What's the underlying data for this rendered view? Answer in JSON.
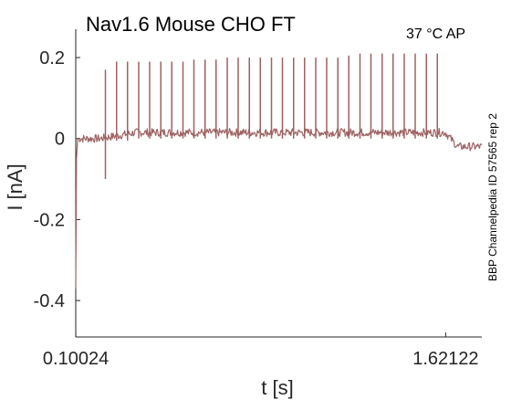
{
  "chart_data": {
    "type": "line",
    "title": "Nav1.6  Mouse  CHO FT",
    "conditions": "37 °C  AP",
    "side_label": "BBP Channelpedia ID 57565 rep 2",
    "xlabel": "t [s]",
    "ylabel": "I [nA]",
    "x_ticks": [
      "0.10024",
      "1.62122"
    ],
    "x_tick_values": [
      0.10024,
      1.62122
    ],
    "y_ticks": [
      "0.2",
      "0",
      "-0.2",
      "-0.4"
    ],
    "y_tick_values": [
      0.2,
      0,
      -0.2,
      -0.4
    ],
    "xlim": [
      0.1,
      1.77
    ],
    "ylim": [
      -0.49,
      0.27
    ],
    "grid": false,
    "line_color": "#9e6262",
    "series": [
      {
        "baseline_before": 0.0,
        "baseline_during": 0.015,
        "baseline_after": -0.02,
        "stim_start": 0.2,
        "stim_end": 1.62,
        "initial_transient": -0.37,
        "spike_times": [
          0.222,
          0.268,
          0.313,
          0.359,
          0.404,
          0.45,
          0.495,
          0.541,
          0.586,
          0.632,
          0.677,
          0.723,
          0.768,
          0.814,
          0.859,
          0.905,
          0.95,
          0.996,
          1.041,
          1.087,
          1.132,
          1.178,
          1.223,
          1.269,
          1.314,
          1.36,
          1.405,
          1.451,
          1.496,
          1.542,
          1.587
        ],
        "spike_peaks": [
          0.17,
          0.19,
          0.19,
          0.19,
          0.19,
          0.19,
          0.19,
          0.19,
          0.195,
          0.195,
          0.195,
          0.2,
          0.2,
          0.2,
          0.2,
          0.2,
          0.2,
          0.2,
          0.2,
          0.2,
          0.2,
          0.2,
          0.205,
          0.21,
          0.21,
          0.21,
          0.21,
          0.21,
          0.21,
          0.21,
          0.21
        ],
        "first_undershoot": -0.1
      }
    ]
  }
}
